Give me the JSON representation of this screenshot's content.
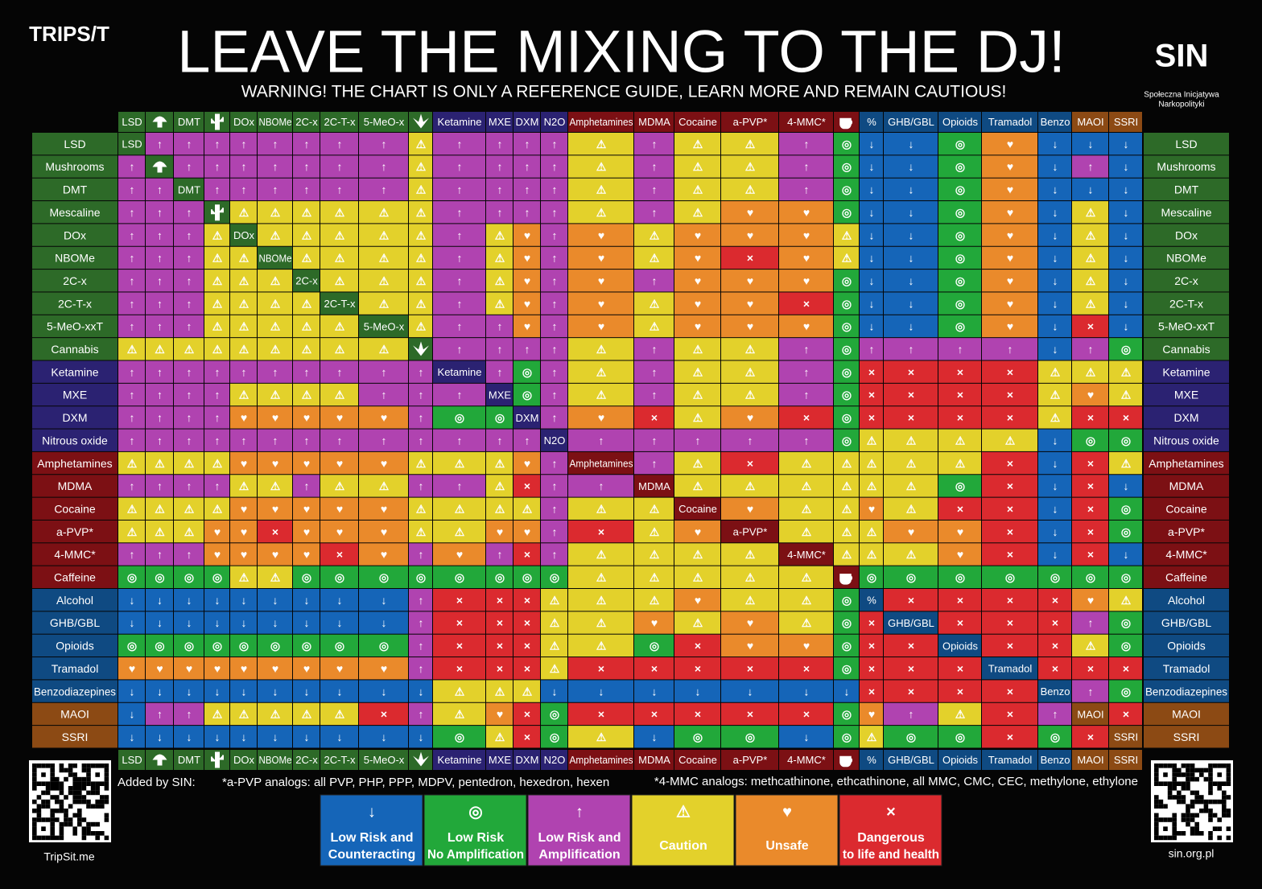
{
  "header": {
    "logo_left": "TRIPS/T",
    "title": "LEAVE THE MIXING TO THE DJ!",
    "subtitle": "WARNING! THE CHART IS ONLY A REFERENCE GUIDE, LEARN MORE AND REMAIN CAUTIOUS!",
    "logo_right": "SIN",
    "logo_right_caption": [
      "Społeczna Inicjatywa",
      "Narkopolityki"
    ]
  },
  "columns": [
    "LSD",
    null,
    "DMT",
    null,
    "DOx",
    "NBOMe",
    "2C-x",
    "2C-T-x",
    "5-MeO-x",
    null,
    "Ketamine",
    "MXE",
    "DXM",
    "N2O",
    "Amphetamines",
    "MDMA",
    "Cocaine",
    "a-PVP*",
    "4-MMC*",
    null,
    "%",
    "GHB/GBL",
    "Opioids",
    "Tramadol",
    "Benzo",
    "MAOI",
    "SSRI"
  ],
  "rows": [
    "LSD",
    "Mushrooms",
    "DMT",
    "Mescaline",
    "DOx",
    "NBOMe",
    "2C-x",
    "2C-T-x",
    "5-MeO-xxT",
    "Cannabis",
    "Ketamine",
    "MXE",
    "DXM",
    "Nitrous oxide",
    "Amphetamines",
    "MDMA",
    "Cocaine",
    "a-PVP*",
    "4-MMC*",
    "Caffeine",
    "Alcohol",
    "GHB/GBL",
    "Opioids",
    "Tramadol",
    "Benzodiazepines",
    "MAOI",
    "SSRI"
  ],
  "matrix": [
    [
      null,
      "↑",
      "↑",
      "↑",
      "↑",
      "↑",
      "↑",
      "↑",
      "↑",
      "⚠",
      "↑",
      "↑",
      "↑",
      "↑",
      "⚠",
      "↑",
      "⚠",
      "⚠",
      "↑",
      "◎",
      "↓",
      "↓",
      "◎",
      "♥",
      "↓",
      "↓",
      "↓"
    ],
    [
      "↑",
      null,
      "↑",
      "↑",
      "↑",
      "↑",
      "↑",
      "↑",
      "↑",
      "⚠",
      "↑",
      "↑",
      "↑",
      "↑",
      "⚠",
      "↑",
      "⚠",
      "⚠",
      "↑",
      "◎",
      "↓",
      "↓",
      "◎",
      "♥",
      "↓",
      "↑",
      "↓"
    ],
    [
      "↑",
      "↑",
      null,
      "↑",
      "↑",
      "↑",
      "↑",
      "↑",
      "↑",
      "⚠",
      "↑",
      "↑",
      "↑",
      "↑",
      "⚠",
      "↑",
      "⚠",
      "⚠",
      "↑",
      "◎",
      "↓",
      "↓",
      "◎",
      "♥",
      "↓",
      "↓",
      "↓"
    ],
    [
      "↑",
      "↑",
      "↑",
      null,
      "⚠",
      "⚠",
      "⚠",
      "⚠",
      "⚠",
      "⚠",
      "↑",
      "↑",
      "↑",
      "↑",
      "⚠",
      "↑",
      "⚠",
      "♥",
      "♥",
      "◎",
      "↓",
      "↓",
      "◎",
      "♥",
      "↓",
      "⚠",
      "↓"
    ],
    [
      "↑",
      "↑",
      "↑",
      "⚠",
      null,
      "⚠",
      "⚠",
      "⚠",
      "⚠",
      "⚠",
      "↑",
      "⚠",
      "♥",
      "↑",
      "♥",
      "⚠",
      "♥",
      "♥",
      "♥",
      "⚠",
      "↓",
      "↓",
      "◎",
      "♥",
      "↓",
      "⚠",
      "↓"
    ],
    [
      "↑",
      "↑",
      "↑",
      "⚠",
      "⚠",
      null,
      "⚠",
      "⚠",
      "⚠",
      "⚠",
      "↑",
      "⚠",
      "♥",
      "↑",
      "♥",
      "⚠",
      "♥",
      "×",
      "♥",
      "⚠",
      "↓",
      "↓",
      "◎",
      "♥",
      "↓",
      "⚠",
      "↓"
    ],
    [
      "↑",
      "↑",
      "↑",
      "⚠",
      "⚠",
      "⚠",
      null,
      "⚠",
      "⚠",
      "⚠",
      "↑",
      "⚠",
      "♥",
      "↑",
      "♥",
      "↑",
      "♥",
      "♥",
      "♥",
      "◎",
      "↓",
      "↓",
      "◎",
      "♥",
      "↓",
      "⚠",
      "↓"
    ],
    [
      "↑",
      "↑",
      "↑",
      "⚠",
      "⚠",
      "⚠",
      "⚠",
      null,
      "⚠",
      "⚠",
      "↑",
      "⚠",
      "♥",
      "↑",
      "♥",
      "⚠",
      "♥",
      "♥",
      "×",
      "◎",
      "↓",
      "↓",
      "◎",
      "♥",
      "↓",
      "⚠",
      "↓"
    ],
    [
      "↑",
      "↑",
      "↑",
      "⚠",
      "⚠",
      "⚠",
      "⚠",
      "⚠",
      null,
      "⚠",
      "↑",
      "↑",
      "♥",
      "↑",
      "♥",
      "⚠",
      "♥",
      "♥",
      "♥",
      "◎",
      "↓",
      "↓",
      "◎",
      "♥",
      "↓",
      "×",
      "↓"
    ],
    [
      "⚠",
      "⚠",
      "⚠",
      "⚠",
      "⚠",
      "⚠",
      "⚠",
      "⚠",
      "⚠",
      null,
      "↑",
      "↑",
      "↑",
      "↑",
      "⚠",
      "↑",
      "⚠",
      "⚠",
      "↑",
      "◎",
      "↑",
      "↑",
      "↑",
      "↑",
      "↓",
      "↑",
      "◎"
    ],
    [
      "↑",
      "↑",
      "↑",
      "↑",
      "↑",
      "↑",
      "↑",
      "↑",
      "↑",
      "↑",
      null,
      "↑",
      "◎",
      "↑",
      "⚠",
      "↑",
      "⚠",
      "⚠",
      "↑",
      "◎",
      "×",
      "×",
      "×",
      "×",
      "⚠",
      "⚠",
      "⚠"
    ],
    [
      "↑",
      "↑",
      "↑",
      "↑",
      "⚠",
      "⚠",
      "⚠",
      "⚠",
      "↑",
      "↑",
      "↑",
      null,
      "◎",
      "↑",
      "⚠",
      "↑",
      "⚠",
      "⚠",
      "↑",
      "◎",
      "×",
      "×",
      "×",
      "×",
      "⚠",
      "♥",
      "⚠"
    ],
    [
      "↑",
      "↑",
      "↑",
      "↑",
      "♥",
      "♥",
      "♥",
      "♥",
      "♥",
      "↑",
      "◎",
      "◎",
      null,
      "↑",
      "♥",
      "×",
      "⚠",
      "♥",
      "×",
      "◎",
      "×",
      "×",
      "×",
      "×",
      "⚠",
      "×",
      "×"
    ],
    [
      "↑",
      "↑",
      "↑",
      "↑",
      "↑",
      "↑",
      "↑",
      "↑",
      "↑",
      "↑",
      "↑",
      "↑",
      "↑",
      null,
      "↑",
      "↑",
      "↑",
      "↑",
      "↑",
      "◎",
      "⚠",
      "⚠",
      "⚠",
      "⚠",
      "↓",
      "◎",
      "◎"
    ],
    [
      "⚠",
      "⚠",
      "⚠",
      "⚠",
      "♥",
      "♥",
      "♥",
      "♥",
      "♥",
      "⚠",
      "⚠",
      "⚠",
      "♥",
      "↑",
      null,
      "↑",
      "⚠",
      "×",
      "⚠",
      "⚠",
      "⚠",
      "⚠",
      "⚠",
      "×",
      "↓",
      "×",
      "⚠"
    ],
    [
      "↑",
      "↑",
      "↑",
      "↑",
      "⚠",
      "⚠",
      "↑",
      "⚠",
      "⚠",
      "↑",
      "↑",
      "⚠",
      "×",
      "↑",
      "↑",
      null,
      "⚠",
      "⚠",
      "⚠",
      "⚠",
      "⚠",
      "⚠",
      "◎",
      "×",
      "↓",
      "×",
      "↓"
    ],
    [
      "⚠",
      "⚠",
      "⚠",
      "⚠",
      "♥",
      "♥",
      "♥",
      "♥",
      "♥",
      "⚠",
      "⚠",
      "⚠",
      "⚠",
      "↑",
      "⚠",
      "⚠",
      null,
      "♥",
      "⚠",
      "⚠",
      "♥",
      "⚠",
      "×",
      "×",
      "↓",
      "×",
      "◎"
    ],
    [
      "⚠",
      "⚠",
      "⚠",
      "♥",
      "♥",
      "×",
      "♥",
      "♥",
      "♥",
      "⚠",
      "⚠",
      "♥",
      "♥",
      "↑",
      "×",
      "⚠",
      "♥",
      null,
      "⚠",
      "⚠",
      "⚠",
      "♥",
      "♥",
      "×",
      "↓",
      "×",
      "◎"
    ],
    [
      "↑",
      "↑",
      "↑",
      "♥",
      "♥",
      "♥",
      "♥",
      "×",
      "♥",
      "↑",
      "♥",
      "↑",
      "×",
      "↑",
      "⚠",
      "⚠",
      "⚠",
      "⚠",
      null,
      "⚠",
      "⚠",
      "⚠",
      "♥",
      "×",
      "↓",
      "×",
      "↓"
    ],
    [
      "◎",
      "◎",
      "◎",
      "◎",
      "⚠",
      "⚠",
      "◎",
      "◎",
      "◎",
      "◎",
      "◎",
      "◎",
      "◎",
      "◎",
      "⚠",
      "⚠",
      "⚠",
      "⚠",
      "⚠",
      null,
      "◎",
      "◎",
      "◎",
      "◎",
      "◎",
      "◎",
      "◎"
    ],
    [
      "↓",
      "↓",
      "↓",
      "↓",
      "↓",
      "↓",
      "↓",
      "↓",
      "↓",
      "↑",
      "×",
      "×",
      "×",
      "⚠",
      "⚠",
      "⚠",
      "♥",
      "⚠",
      "⚠",
      "◎",
      null,
      "×",
      "×",
      "×",
      "×",
      "♥",
      "⚠"
    ],
    [
      "↓",
      "↓",
      "↓",
      "↓",
      "↓",
      "↓",
      "↓",
      "↓",
      "↓",
      "↑",
      "×",
      "×",
      "×",
      "⚠",
      "⚠",
      "♥",
      "⚠",
      "♥",
      "⚠",
      "◎",
      "×",
      null,
      "×",
      "×",
      "×",
      "↑",
      "◎"
    ],
    [
      "◎",
      "◎",
      "◎",
      "◎",
      "◎",
      "◎",
      "◎",
      "◎",
      "◎",
      "↑",
      "×",
      "×",
      "×",
      "⚠",
      "⚠",
      "◎",
      "×",
      "♥",
      "♥",
      "◎",
      "×",
      "×",
      null,
      "×",
      "×",
      "⚠",
      "◎"
    ],
    [
      "♥",
      "♥",
      "♥",
      "♥",
      "♥",
      "♥",
      "♥",
      "♥",
      "♥",
      "↑",
      "×",
      "×",
      "×",
      "⚠",
      "×",
      "×",
      "×",
      "×",
      "×",
      "◎",
      "×",
      "×",
      "×",
      null,
      "×",
      "×",
      "×"
    ],
    [
      "↓",
      "↓",
      "↓",
      "↓",
      "↓",
      "↓",
      "↓",
      "↓",
      "↓",
      "↓",
      "⚠",
      "⚠",
      "⚠",
      "↓",
      "↓",
      "↓",
      "↓",
      "↓",
      "↓",
      "↓",
      "×",
      "×",
      "×",
      "×",
      null,
      "↑",
      "◎"
    ],
    [
      "↓",
      "↑",
      "↑",
      "⚠",
      "⚠",
      "⚠",
      "⚠",
      "⚠",
      "×",
      "↑",
      "⚠",
      "♥",
      "×",
      "◎",
      "×",
      "×",
      "×",
      "×",
      "×",
      "◎",
      "♥",
      "↑",
      "⚠",
      "×",
      "↑",
      null,
      "×"
    ],
    [
      "↓",
      "↓",
      "↓",
      "↓",
      "↓",
      "↓",
      "↓",
      "↓",
      "↓",
      "↓",
      "◎",
      "⚠",
      "×",
      "◎",
      "⚠",
      "↓",
      "◎",
      "◎",
      "↓",
      "◎",
      "⚠",
      "◎",
      "◎",
      "×",
      "◎",
      "×",
      null
    ]
  ],
  "footer": {
    "added_by": "Added by SIN:",
    "apvp_note": "*a-PVP analogs: all PVP, PHP, PPP, MDPV, pentedron, hexedron, hexen",
    "mmc_note": "*4-MMC analogs: methcathinone, ethcathinone, all MMC, CMC, CEC, methylone, ethylone",
    "left_link": "TripSit.me",
    "right_link": "sin.org.pl"
  },
  "legend": [
    {
      "icon": "↓",
      "label": [
        "Low Risk and",
        "Counteracting"
      ]
    },
    {
      "icon": "◎",
      "label": [
        "Low Risk",
        "No Amplification"
      ]
    },
    {
      "icon": "↑",
      "label": [
        "Low Risk and",
        "Amplification"
      ]
    },
    {
      "icon": "⚠",
      "label": [
        "Caution"
      ]
    },
    {
      "icon": "♥",
      "label": [
        "Unsafe"
      ]
    },
    {
      "icon": "×",
      "label": [
        "Dangerous",
        "to life and health"
      ]
    }
  ]
}
